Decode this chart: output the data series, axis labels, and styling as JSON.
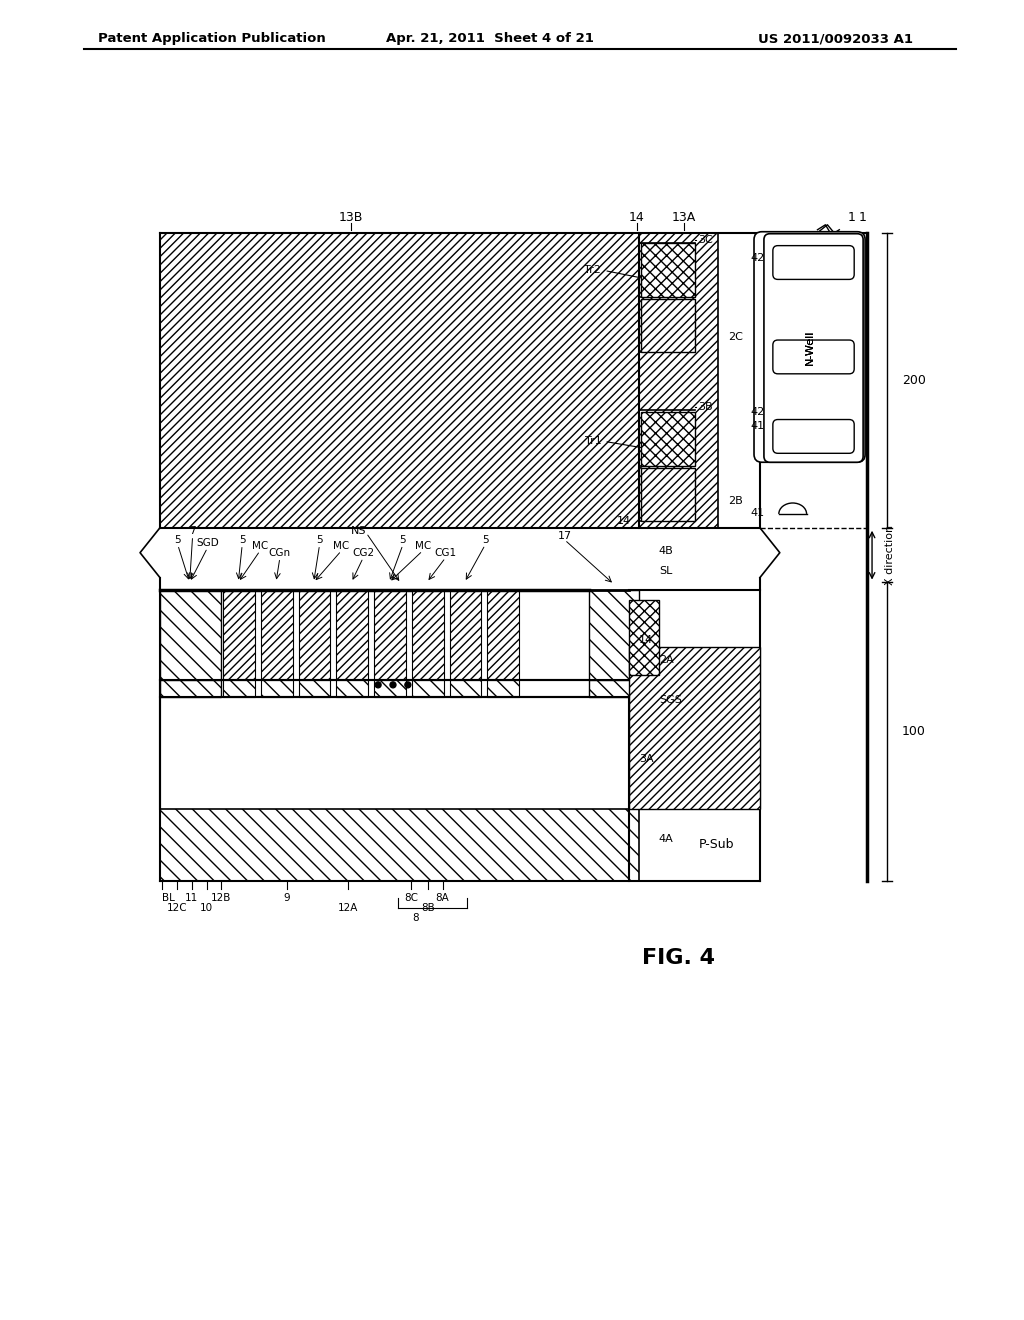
{
  "bg_color": "#ffffff",
  "header_left": "Patent Application Publication",
  "header_mid": "Apr. 21, 2011  Sheet 4 of 21",
  "header_right": "US 2011/0092033 A1",
  "figure_label": "FIG. 4"
}
